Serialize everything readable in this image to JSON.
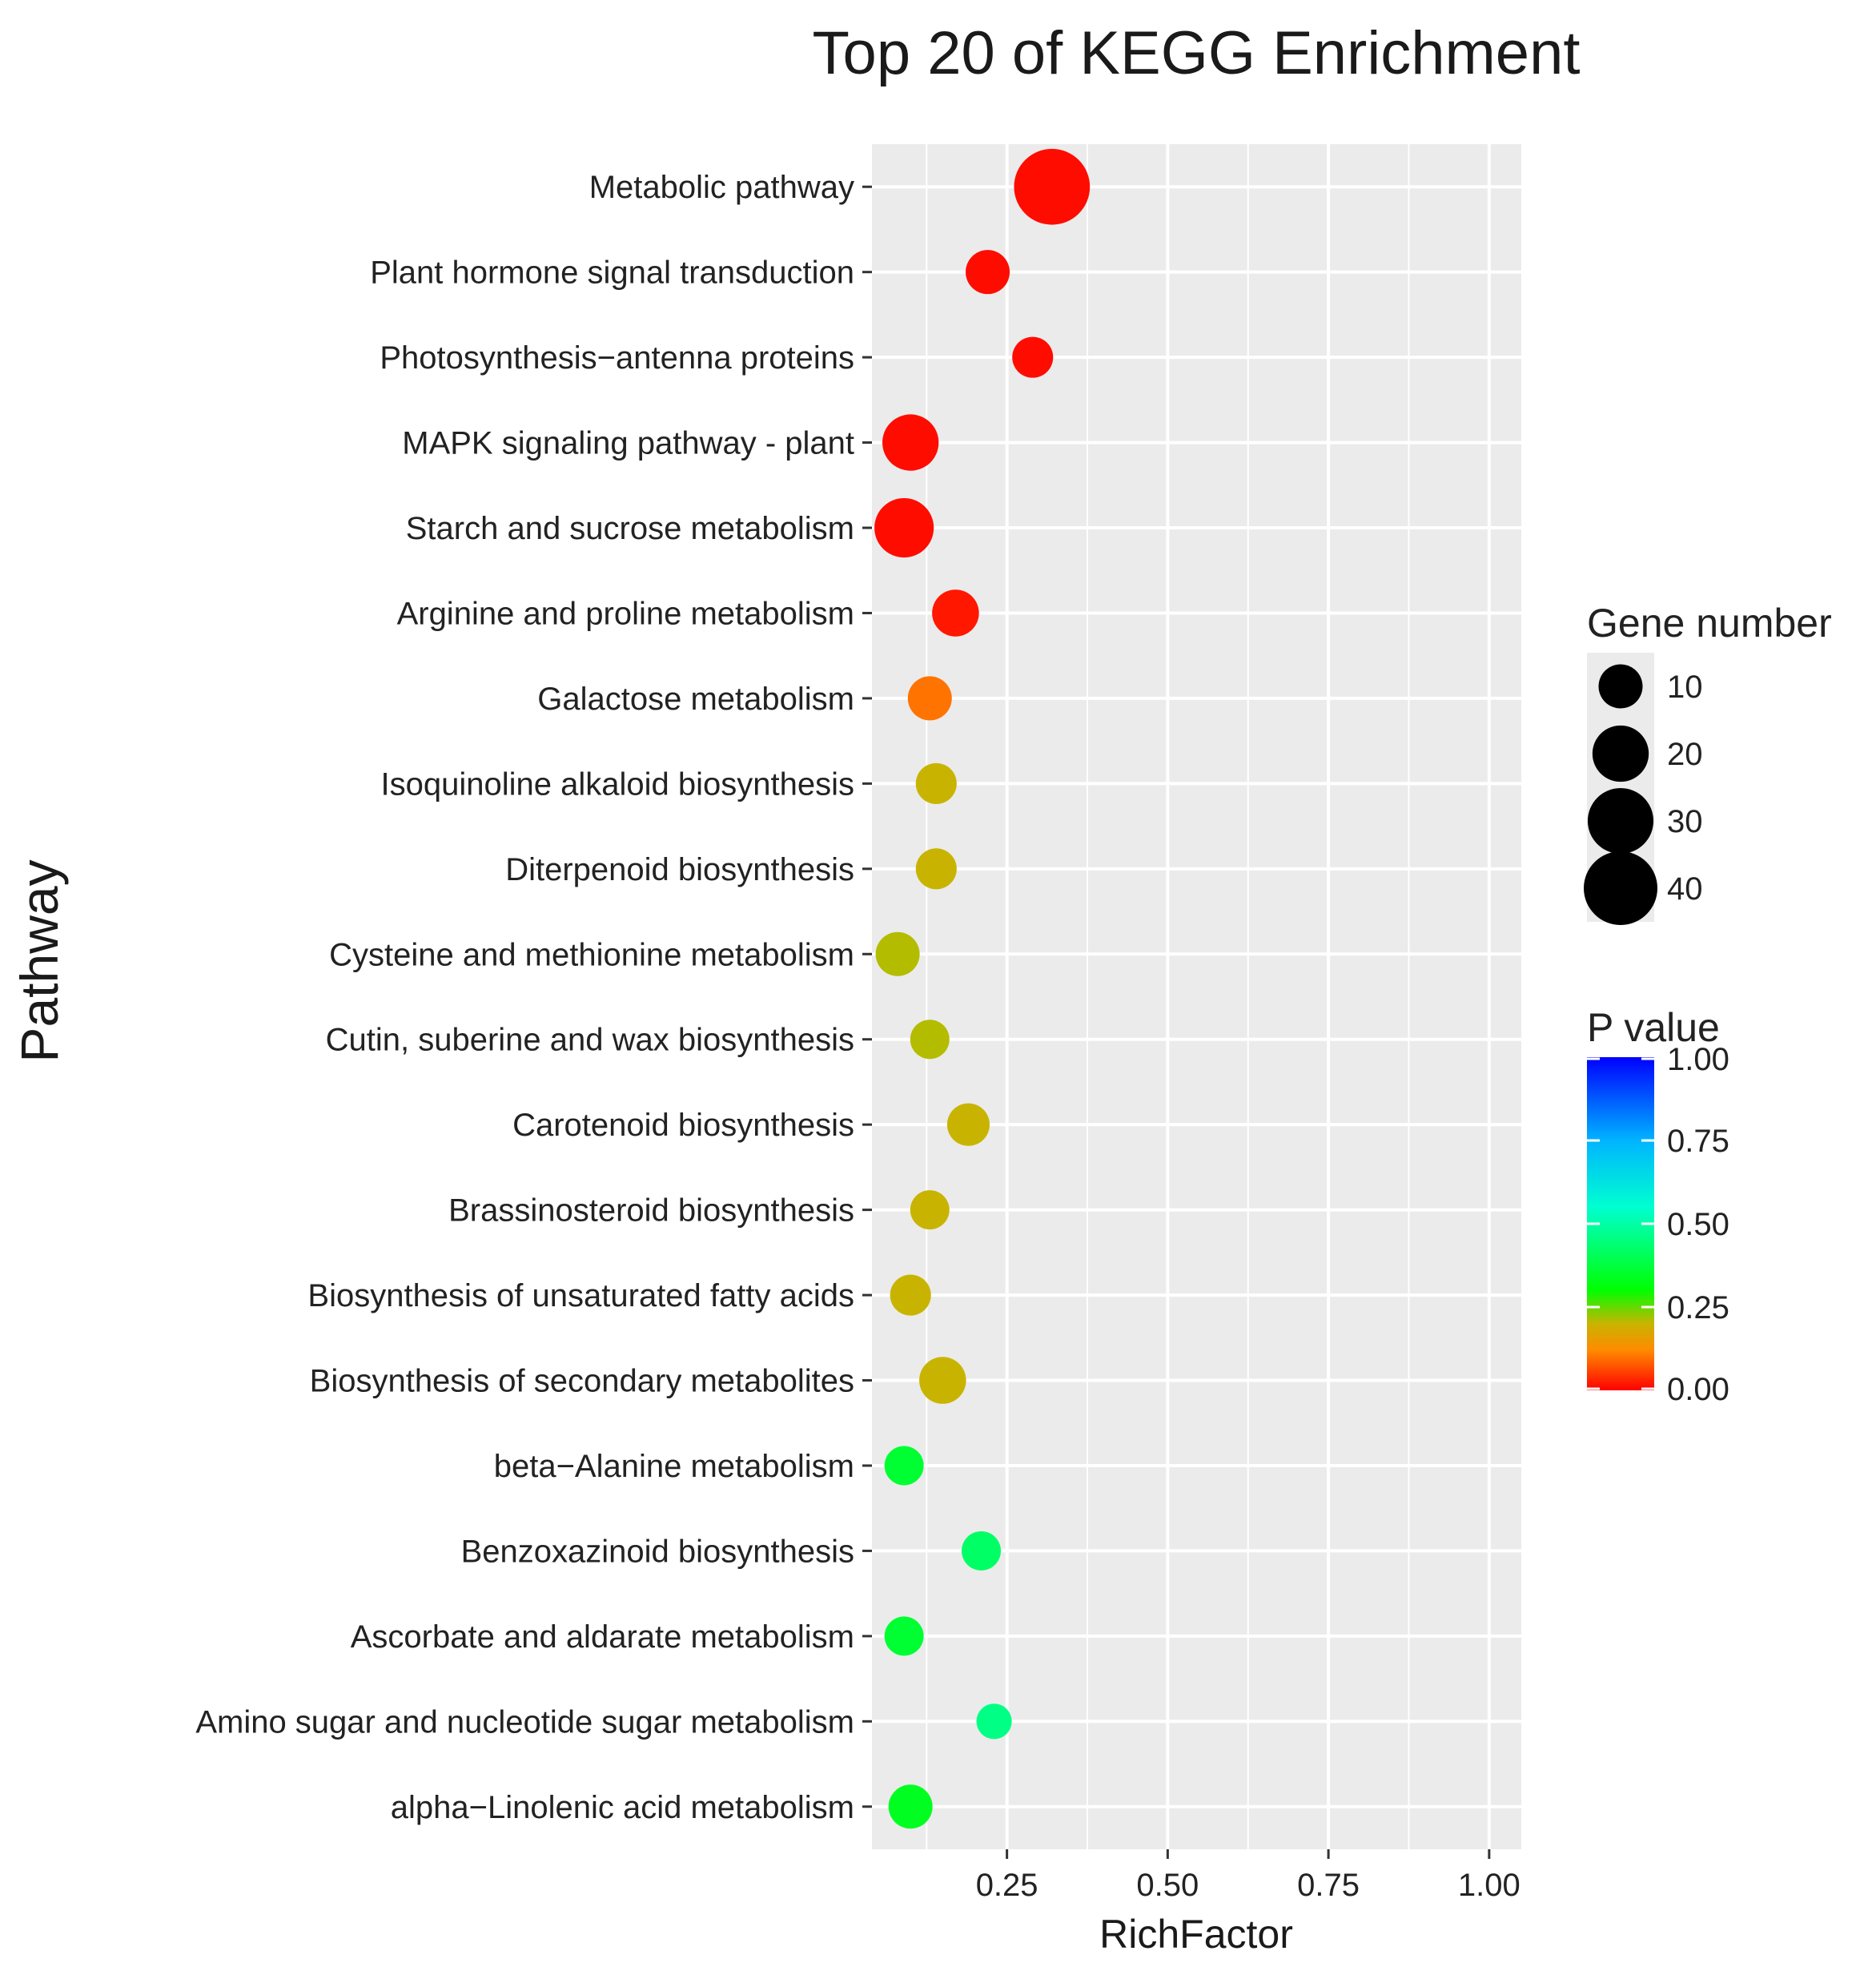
{
  "chart_data": {
    "type": "scatter",
    "title": "Top 20  of KEGG Enrichment",
    "xlabel": "RichFactor",
    "ylabel": "Pathway",
    "xlim": [
      0.04,
      1.05
    ],
    "xticks": [
      0.25,
      0.5,
      0.75,
      1.0
    ],
    "xtick_labels": [
      "0.25",
      "0.50",
      "0.75",
      "1.00"
    ],
    "grid": true,
    "categories": [
      "Metabolic pathway",
      "Plant hormone signal transduction",
      "Photosynthesis−antenna proteins",
      "MAPK signaling pathway - plant",
      "Starch and sucrose metabolism",
      "Arginine and proline metabolism",
      "Galactose metabolism",
      "Isoquinoline alkaloid biosynthesis",
      "Diterpenoid biosynthesis",
      "Cysteine and methionine metabolism",
      "Cutin, suberine and wax biosynthesis",
      "Carotenoid biosynthesis",
      "Brassinosteroid biosynthesis",
      "Biosynthesis of unsaturated fatty acids",
      "Biosynthesis of secondary metabolites",
      "beta−Alanine metabolism",
      "Benzoxazinoid biosynthesis",
      "Ascorbate and aldarate metabolism",
      "Amino sugar and nucleotide sugar metabolism",
      "alpha−Linolenic acid metabolism"
    ],
    "rich_factor": [
      0.32,
      0.22,
      0.29,
      0.1,
      0.09,
      0.17,
      0.13,
      0.14,
      0.14,
      0.08,
      0.13,
      0.19,
      0.13,
      0.1,
      0.15,
      0.09,
      0.21,
      0.09,
      0.23,
      0.1
    ],
    "gene_number": [
      43,
      10,
      8,
      20,
      23,
      12,
      10,
      8,
      8,
      10,
      7,
      9,
      7,
      8,
      12,
      7,
      7,
      7,
      5,
      10
    ],
    "p_value": [
      0.01,
      0.01,
      0.01,
      0.01,
      0.01,
      0.02,
      0.1,
      0.2,
      0.2,
      0.21,
      0.21,
      0.2,
      0.2,
      0.2,
      0.2,
      0.36,
      0.42,
      0.36,
      0.46,
      0.34
    ],
    "size_legend": {
      "title": "Gene number",
      "values": [
        10,
        20,
        30,
        40
      ],
      "labels": [
        "10",
        "20",
        "30",
        "40"
      ]
    },
    "color_legend": {
      "title": "P value",
      "range": [
        0.0,
        1.0
      ],
      "ticks": [
        1.0,
        0.75,
        0.5,
        0.25,
        0.0
      ],
      "tick_labels": [
        "1.00",
        "0.75",
        "0.50",
        "0.25",
        "0.00"
      ],
      "gradient_stops": [
        {
          "value": 0.0,
          "color": "#ff0000"
        },
        {
          "value": 0.12,
          "color": "#ff8a00"
        },
        {
          "value": 0.2,
          "color": "#c8b400"
        },
        {
          "value": 0.3,
          "color": "#00ff00"
        },
        {
          "value": 0.55,
          "color": "#00ffd0"
        },
        {
          "value": 0.75,
          "color": "#00b4ff"
        },
        {
          "value": 1.0,
          "color": "#0000ff"
        }
      ]
    }
  }
}
